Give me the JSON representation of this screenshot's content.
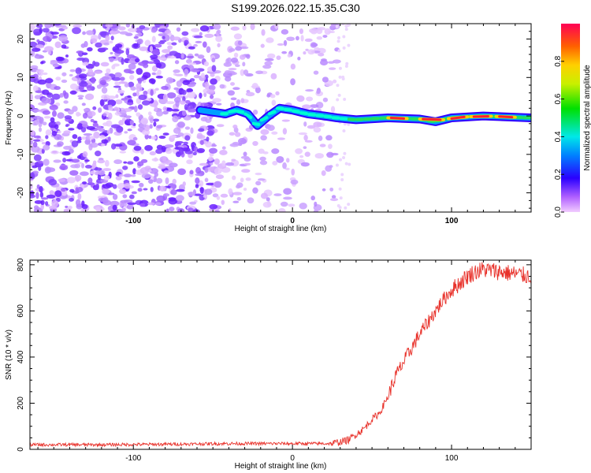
{
  "title": "S199.2026.022.15.35.C30",
  "chart_data": [
    {
      "type": "heatmap",
      "name": "spectrogram",
      "xlabel": "Height of straight line (km)",
      "ylabel": "Frequency (Hz)",
      "xlim": [
        -165,
        150
      ],
      "ylim": [
        -25,
        24
      ],
      "xticks": [
        -100,
        0,
        100
      ],
      "yticks": [
        -20,
        -10,
        0,
        10,
        20
      ],
      "noise_region_x": [
        -165,
        28
      ],
      "signal_start_x": -60,
      "ridge": [
        {
          "x": -58,
          "f": 1.5
        },
        {
          "x": -50,
          "f": 1.0
        },
        {
          "x": -42,
          "f": 0.5
        },
        {
          "x": -35,
          "f": 1.5
        },
        {
          "x": -28,
          "f": 0.5
        },
        {
          "x": -22,
          "f": -2.5
        },
        {
          "x": -15,
          "f": 0.0
        },
        {
          "x": -8,
          "f": 2.0
        },
        {
          "x": 0,
          "f": 1.5
        },
        {
          "x": 10,
          "f": 0.5
        },
        {
          "x": 20,
          "f": 0.0
        },
        {
          "x": 28,
          "f": -0.5
        },
        {
          "x": 40,
          "f": -1.0
        },
        {
          "x": 60,
          "f": -0.5
        },
        {
          "x": 80,
          "f": -0.8
        },
        {
          "x": 90,
          "f": -1.5
        },
        {
          "x": 100,
          "f": -0.5
        },
        {
          "x": 120,
          "f": 0.0
        },
        {
          "x": 150,
          "f": -0.5
        }
      ],
      "hot_segments": [
        [
          60,
          72
        ],
        [
          80,
          95
        ],
        [
          98,
          110
        ],
        [
          112,
          125
        ],
        [
          128,
          140
        ]
      ],
      "colorbar": {
        "label": "Normalized spectral amplitude",
        "range": [
          0,
          1
        ],
        "ticks": [
          0.0,
          0.2,
          0.4,
          0.6,
          0.8
        ],
        "tick_labels": [
          "0.0",
          "0.2",
          "0.4",
          "0.6",
          "0.8"
        ]
      }
    },
    {
      "type": "line",
      "name": "snr",
      "xlabel": "Height of straight line (km)",
      "ylabel": "SNR (10 * v/v)",
      "xlim": [
        -165,
        150
      ],
      "ylim": [
        0,
        820
      ],
      "xticks": [
        -100,
        0,
        100
      ],
      "yticks": [
        0,
        200,
        400,
        600,
        800
      ],
      "color": "#e8312a",
      "series": [
        {
          "name": "SNR",
          "points": [
            [
              -165,
              20
            ],
            [
              -120,
              20
            ],
            [
              -80,
              22
            ],
            [
              -40,
              25
            ],
            [
              0,
              25
            ],
            [
              25,
              25
            ],
            [
              35,
              40
            ],
            [
              45,
              90
            ],
            [
              50,
              130
            ],
            [
              55,
              160
            ],
            [
              60,
              230
            ],
            [
              65,
              320
            ],
            [
              70,
              380
            ],
            [
              75,
              440
            ],
            [
              80,
              500
            ],
            [
              85,
              550
            ],
            [
              90,
              600
            ],
            [
              95,
              650
            ],
            [
              100,
              690
            ],
            [
              105,
              720
            ],
            [
              110,
              750
            ],
            [
              115,
              770
            ],
            [
              120,
              780
            ],
            [
              130,
              770
            ],
            [
              140,
              760
            ],
            [
              150,
              750
            ]
          ]
        }
      ]
    }
  ],
  "colors": {
    "line": "#e8312a",
    "axis": "#000000"
  }
}
